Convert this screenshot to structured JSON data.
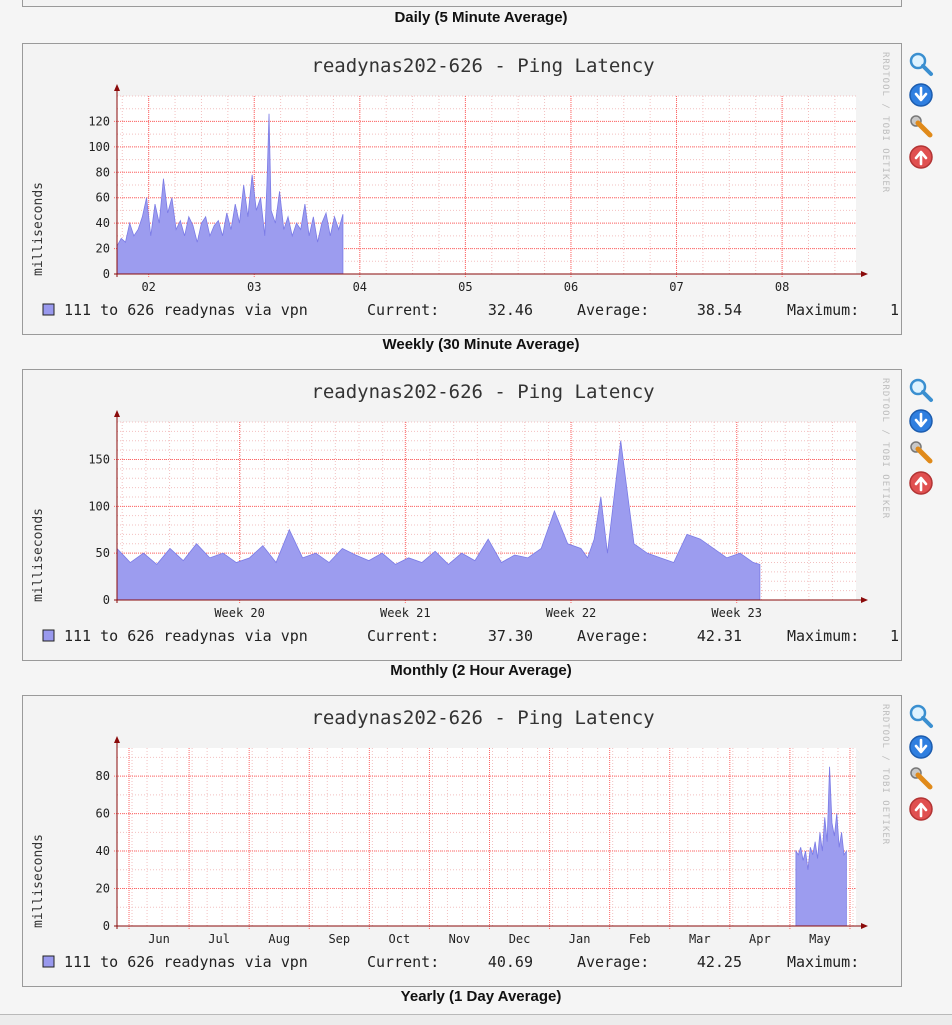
{
  "top_caption": "Daily (5 Minute Average)",
  "watermark": "RRDTOOL / TOBI OETIKER",
  "colors": {
    "area": "#9c9cef",
    "area_edge": "#7b7be6",
    "major_grid": "#ff6666",
    "minor_grid": "#f2c0c0",
    "axis": "#8a0a0a",
    "legend_swatch": "#9999ee"
  },
  "icons": [
    "zoom-icon",
    "download-icon",
    "properties-icon",
    "move-up-icon"
  ],
  "graphs": [
    {
      "caption": "Weekly (30 Minute Average)",
      "legend": {
        "series": "111 to 626 readynas via vpn",
        "current_label": "Current:",
        "current": "32.46",
        "average_label": "Average:",
        "average": "38.54",
        "maximum_label": "Maximum:",
        "maximum": "1"
      },
      "chart_data": {
        "type": "area",
        "title": "readynas202-626 - Ping Latency",
        "ylabel": "milliseconds",
        "ylim": [
          0,
          140
        ],
        "yticks": [
          0,
          20,
          40,
          60,
          80,
          100,
          120
        ],
        "xlim": [
          1.7,
          8.7
        ],
        "xticks": [
          {
            "v": 2,
            "label": "02"
          },
          {
            "v": 3,
            "label": "03"
          },
          {
            "v": 4,
            "label": "04"
          },
          {
            "v": 5,
            "label": "05"
          },
          {
            "v": 6,
            "label": "06"
          },
          {
            "v": 7,
            "label": "07"
          },
          {
            "v": 8,
            "label": "08"
          }
        ],
        "minor_x_step": 0.25,
        "minor_y_step": 10,
        "series": [
          {
            "name": "111 to 626 readynas via vpn",
            "x": [
              1.7,
              1.74,
              1.78,
              1.82,
              1.86,
              1.9,
              1.94,
              1.98,
              2.02,
              2.06,
              2.1,
              2.14,
              2.18,
              2.22,
              2.26,
              2.3,
              2.34,
              2.38,
              2.42,
              2.46,
              2.5,
              2.54,
              2.58,
              2.62,
              2.66,
              2.7,
              2.74,
              2.78,
              2.82,
              2.86,
              2.9,
              2.94,
              2.98,
              3.02,
              3.06,
              3.1,
              3.12,
              3.14,
              3.16,
              3.2,
              3.24,
              3.28,
              3.32,
              3.36,
              3.4,
              3.44,
              3.48,
              3.52,
              3.56,
              3.6,
              3.64,
              3.68,
              3.72,
              3.76,
              3.8,
              3.84
            ],
            "y": [
              22,
              28,
              25,
              40,
              30,
              35,
              45,
              60,
              30,
              55,
              40,
              75,
              48,
              60,
              35,
              42,
              30,
              45,
              38,
              25,
              40,
              45,
              30,
              38,
              42,
              30,
              48,
              35,
              55,
              40,
              70,
              45,
              78,
              50,
              60,
              30,
              70,
              126,
              50,
              40,
              65,
              35,
              45,
              30,
              40,
              35,
              55,
              30,
              45,
              25,
              40,
              48,
              30,
              45,
              35,
              47
            ]
          }
        ]
      }
    },
    {
      "caption": "Monthly (2 Hour Average)",
      "legend": {
        "series": "111 to 626 readynas via vpn",
        "current_label": "Current:",
        "current": "37.30",
        "average_label": "Average:",
        "average": "42.31",
        "maximum_label": "Maximum:",
        "maximum": "1"
      },
      "chart_data": {
        "type": "area",
        "title": "readynas202-626 - Ping Latency",
        "ylabel": "milliseconds",
        "ylim": [
          0,
          190
        ],
        "yticks": [
          0,
          50,
          100,
          150
        ],
        "xlim": [
          19.26,
          23.72
        ],
        "xticks": [
          {
            "v": 20,
            "label": "Week 20"
          },
          {
            "v": 21,
            "label": "Week 21"
          },
          {
            "v": 22,
            "label": "Week 22"
          },
          {
            "v": 23,
            "label": "Week 23"
          }
        ],
        "minor_x_step": 0.1429,
        "minor_y_step": 10,
        "series": [
          {
            "name": "111 to 626 readynas via vpn",
            "x": [
              19.26,
              19.34,
              19.42,
              19.5,
              19.58,
              19.66,
              19.74,
              19.82,
              19.9,
              19.98,
              20.06,
              20.14,
              20.22,
              20.3,
              20.38,
              20.46,
              20.54,
              20.62,
              20.7,
              20.78,
              20.86,
              20.94,
              21.02,
              21.1,
              21.18,
              21.26,
              21.34,
              21.42,
              21.5,
              21.58,
              21.66,
              21.74,
              21.82,
              21.9,
              21.98,
              22.06,
              22.1,
              22.14,
              22.18,
              22.22,
              22.3,
              22.38,
              22.46,
              22.54,
              22.62,
              22.7,
              22.78,
              22.86,
              22.94,
              23.02,
              23.1,
              23.14
            ],
            "y": [
              55,
              40,
              50,
              38,
              55,
              42,
              60,
              45,
              50,
              40,
              45,
              58,
              40,
              75,
              45,
              50,
              40,
              55,
              48,
              42,
              50,
              38,
              45,
              40,
              52,
              38,
              50,
              42,
              65,
              40,
              48,
              45,
              55,
              95,
              60,
              55,
              45,
              65,
              110,
              50,
              170,
              60,
              50,
              45,
              40,
              70,
              65,
              55,
              45,
              50,
              40,
              38
            ]
          }
        ]
      }
    },
    {
      "caption": "Yearly (1 Day Average)",
      "legend": {
        "series": "111 to 626 readynas via vpn",
        "current_label": "Current:",
        "current": "40.69",
        "average_label": "Average:",
        "average": "42.25",
        "maximum_label": "Maximum:",
        "maximum": ""
      },
      "chart_data": {
        "type": "area",
        "title": "readynas202-626 - Ping Latency",
        "ylabel": "milliseconds",
        "ylim": [
          0,
          95
        ],
        "yticks": [
          0,
          20,
          40,
          60,
          80
        ],
        "xlim": [
          0,
          12.3
        ],
        "xticks": [
          {
            "v": 0.7,
            "label": "Jun"
          },
          {
            "v": 1.7,
            "label": "Jul"
          },
          {
            "v": 2.7,
            "label": "Aug"
          },
          {
            "v": 3.7,
            "label": "Sep"
          },
          {
            "v": 4.7,
            "label": "Oct"
          },
          {
            "v": 5.7,
            "label": "Nov"
          },
          {
            "v": 6.7,
            "label": "Dec"
          },
          {
            "v": 7.7,
            "label": "Jan"
          },
          {
            "v": 8.7,
            "label": "Feb"
          },
          {
            "v": 9.7,
            "label": "Mar"
          },
          {
            "v": 10.7,
            "label": "Apr"
          },
          {
            "v": 11.7,
            "label": "May"
          }
        ],
        "month_grid": [
          0.2,
          1.2,
          2.2,
          3.2,
          4.2,
          5.2,
          6.2,
          7.2,
          8.2,
          9.2,
          10.2,
          11.2,
          12.2
        ],
        "minor_x_step": 0.25,
        "minor_y_step": 10,
        "series": [
          {
            "name": "111 to 626 readynas via vpn",
            "x": [
              11.3,
              11.34,
              11.38,
              11.42,
              11.46,
              11.5,
              11.54,
              11.58,
              11.62,
              11.66,
              11.7,
              11.74,
              11.78,
              11.82,
              11.86,
              11.9,
              11.94,
              11.98,
              12.02,
              12.06,
              12.1,
              12.14
            ],
            "y": [
              40,
              38,
              42,
              35,
              40,
              30,
              42,
              38,
              45,
              36,
              50,
              40,
              58,
              45,
              85,
              55,
              48,
              60,
              42,
              50,
              38,
              40
            ]
          }
        ]
      }
    }
  ]
}
